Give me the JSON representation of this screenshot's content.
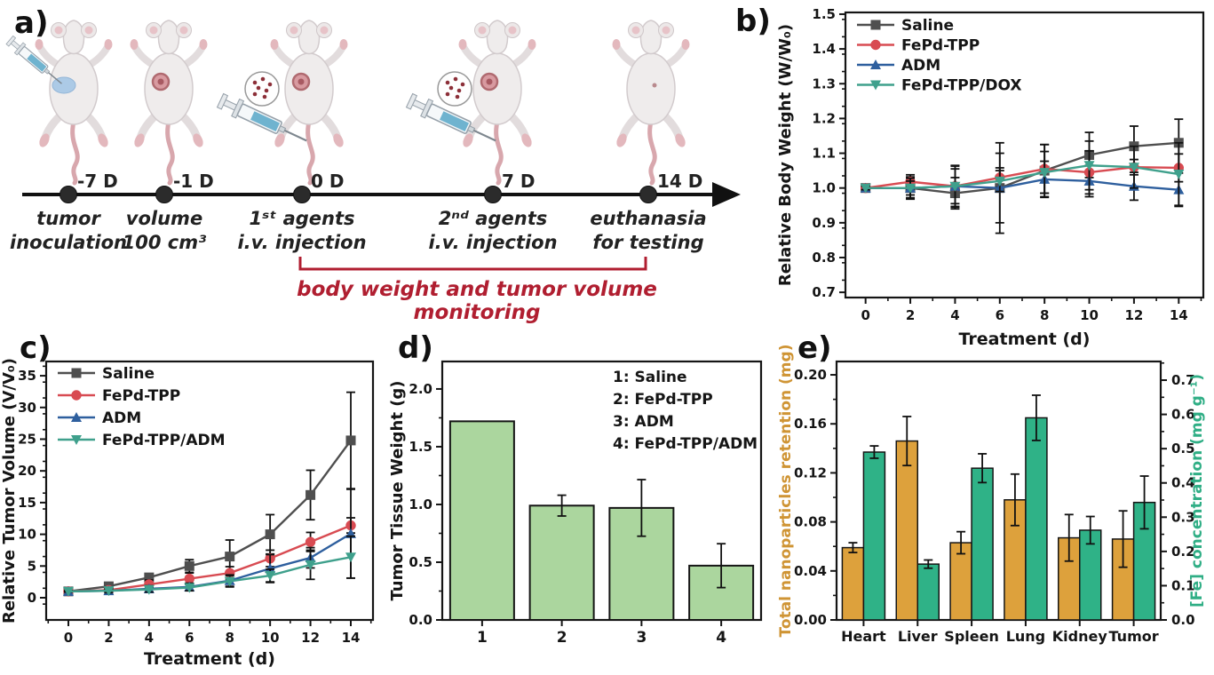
{
  "panels": {
    "a": "a)",
    "b": "b)",
    "c": "c)",
    "d": "d)",
    "e": "e)"
  },
  "panel_a": {
    "milestones": [
      {
        "time": "-7 D",
        "line1": "tumor",
        "line2": "inoculation"
      },
      {
        "time": "-1 D",
        "line1": "volume",
        "line2": "100 cm³"
      },
      {
        "time": "0 D",
        "line1": "1ˢᵗ agents",
        "line2": "i.v. injection"
      },
      {
        "time": "7 D",
        "line1": "2ⁿᵈ agents",
        "line2": "i.v. injection"
      },
      {
        "time": "14 D",
        "line1": "euthanasia",
        "line2": "for testing"
      }
    ],
    "monitoring_note": "body weight and tumor volume monitoring",
    "note_color": "#b01e30"
  },
  "chart_data": [
    {
      "id": "b",
      "type": "line",
      "title": "",
      "xlabel": "Treatment (d)",
      "ylabel": "Relative Body Weight (W/W₀)",
      "x": [
        0,
        2,
        4,
        6,
        8,
        10,
        12,
        14
      ],
      "xlim": [
        -0.9,
        15.1
      ],
      "ylim": [
        0.685,
        1.505
      ],
      "xticks": [
        0,
        2,
        4,
        6,
        8,
        10,
        12,
        14
      ],
      "yticks": [
        0.7,
        0.8,
        0.9,
        1.0,
        1.1,
        1.2,
        1.3,
        1.4,
        1.5
      ],
      "xminor_step": 1,
      "yminor_step": 0.05,
      "ytick_decimals": 1,
      "legend_position": "top-left",
      "grid": false,
      "series": [
        {
          "name": "Saline",
          "color": "#4f4f4f",
          "marker": "square",
          "values": [
            1.0,
            1.0,
            0.985,
            1.0,
            1.05,
            1.095,
            1.12,
            1.13
          ],
          "errors": [
            0.005,
            0.032,
            0.045,
            0.1,
            0.075,
            0.065,
            0.058,
            0.068
          ]
        },
        {
          "name": "FePd-TPP",
          "color": "#d84b52",
          "marker": "circle",
          "values": [
            1.0,
            1.018,
            1.005,
            1.03,
            1.055,
            1.045,
            1.06,
            1.058
          ],
          "errors": [
            0.005,
            0.02,
            0.05,
            0.028,
            0.07,
            0.062,
            0.022,
            0.04
          ]
        },
        {
          "name": "ADM",
          "color": "#2e5f9e",
          "marker": "triangle-up",
          "values": [
            1.0,
            1.0,
            1.005,
            1.0,
            1.025,
            1.02,
            1.005,
            0.995
          ],
          "errors": [
            0.005,
            0.028,
            0.058,
            0.13,
            0.052,
            0.045,
            0.04,
            0.048
          ]
        },
        {
          "name": "FePd-TPP/DOX",
          "color": "#3fa08c",
          "marker": "triangle-down",
          "values": [
            1.0,
            1.0,
            1.005,
            1.02,
            1.045,
            1.065,
            1.06,
            1.04
          ],
          "errors": [
            0.005,
            0.02,
            0.06,
            0.03,
            0.06,
            0.07,
            0.06,
            0.09
          ]
        }
      ]
    },
    {
      "id": "c",
      "type": "line",
      "title": "",
      "xlabel": "Treatment (d)",
      "ylabel": "Relative Tumor Volume (V/V₀)",
      "x": [
        0,
        2,
        4,
        6,
        8,
        10,
        12,
        14
      ],
      "xlim": [
        -1.1,
        15.1
      ],
      "ylim": [
        -3.5,
        37.25
      ],
      "xticks": [
        0,
        2,
        4,
        6,
        8,
        10,
        12,
        14
      ],
      "yticks": [
        0,
        5,
        10,
        15,
        20,
        25,
        30,
        35
      ],
      "xminor_step": 1,
      "yminor_step": 2.5,
      "ytick_decimals": 0,
      "legend_position": "top-left",
      "grid": false,
      "series": [
        {
          "name": "Saline",
          "color": "#4f4f4f",
          "marker": "square",
          "values": [
            1.0,
            1.8,
            3.2,
            5.0,
            6.5,
            10.0,
            16.2,
            24.8
          ],
          "errors": [
            0.1,
            0.4,
            0.6,
            1.0,
            2.6,
            3.1,
            3.9,
            7.6
          ]
        },
        {
          "name": "FePd-TPP",
          "color": "#d84b52",
          "marker": "circle",
          "values": [
            1.0,
            1.2,
            2.1,
            3.0,
            3.9,
            6.2,
            8.8,
            11.4
          ],
          "errors": [
            0.1,
            0.3,
            0.7,
            0.9,
            1.0,
            1.3,
            1.5,
            1.2
          ]
        },
        {
          "name": "ADM",
          "color": "#2e5f9e",
          "marker": "triangle-up",
          "values": [
            1.0,
            1.1,
            1.4,
            1.7,
            2.7,
            4.6,
            6.3,
            10.1
          ],
          "errors": [
            0.1,
            0.3,
            0.5,
            0.6,
            0.9,
            2.2,
            1.6,
            7.0
          ]
        },
        {
          "name": "FePd-TPP/ADM",
          "color": "#3fa08c",
          "marker": "triangle-down",
          "values": [
            1.0,
            1.1,
            1.3,
            1.6,
            2.6,
            3.5,
            5.2,
            6.4
          ],
          "errors": [
            0.1,
            0.3,
            0.4,
            0.5,
            0.9,
            1.0,
            2.3,
            3.3
          ]
        }
      ]
    },
    {
      "id": "d",
      "type": "bar",
      "title": "",
      "xlabel": "",
      "ylabel": "Tumor Tissue Weight (g)",
      "categories": [
        "1",
        "2",
        "3",
        "4"
      ],
      "values": [
        1.72,
        0.99,
        0.97,
        0.47
      ],
      "errors": [
        0,
        0.09,
        0.245,
        0.19
      ],
      "bar_color": "#abd69e",
      "bar_edge": "#151515",
      "ylim": [
        0,
        2.238
      ],
      "yticks": [
        0.0,
        0.5,
        1.0,
        1.5,
        2.0
      ],
      "yminor_step": 0.25,
      "ytick_decimals": 1,
      "grid": false,
      "annotations": [
        "1: Saline",
        "2: FePd-TPP",
        "3: ADM",
        "4: FePd-TPP/ADM"
      ]
    },
    {
      "id": "e",
      "type": "grouped-bar-dual-axis",
      "title": "",
      "categories": [
        "Heart",
        "Liver",
        "Spleen",
        "Lung",
        "Kidney",
        "Tumor"
      ],
      "left_axis": {
        "label": "Total nanoparticles retention (mg)",
        "color": "#cf9434",
        "ylim": [
          0,
          0.2109
        ],
        "yticks": [
          0.0,
          0.04,
          0.08,
          0.12,
          0.16,
          0.2
        ],
        "yminor_step": 0.02,
        "ytick_decimals": 2
      },
      "right_axis": {
        "label": "[Fe] concentration (mg g⁻¹)",
        "color": "#2fae85",
        "ylim": [
          0,
          0.7545
        ],
        "yticks": [
          0.0,
          0.1,
          0.2,
          0.3,
          0.4,
          0.5,
          0.6,
          0.7
        ],
        "yminor_step": 0.05,
        "ytick_decimals": 1
      },
      "series": [
        {
          "name": "Total nanoparticles retention (mg)",
          "axis": "left",
          "color": "#dda13c",
          "values": [
            0.059,
            0.146,
            0.063,
            0.098,
            0.067,
            0.066
          ],
          "errors": [
            0.004,
            0.02,
            0.009,
            0.021,
            0.019,
            0.023
          ]
        },
        {
          "name": "[Fe] concentration (mg g⁻¹)",
          "axis": "right",
          "color": "#2fb287",
          "values": [
            0.49,
            0.163,
            0.443,
            0.59,
            0.262,
            0.343
          ],
          "errors": [
            0.018,
            0.012,
            0.042,
            0.066,
            0.04,
            0.077
          ]
        }
      ],
      "grid": false
    }
  ]
}
